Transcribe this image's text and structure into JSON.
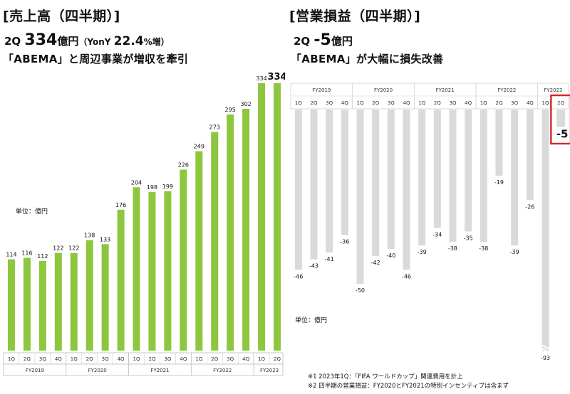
{
  "left": {
    "title": "[売上高（四半期）]",
    "headline_prefix": "2Q ",
    "headline_value": "334",
    "headline_unit": "億円",
    "headline_yoy_label": "（YonY ",
    "headline_yoy_value": "22.4",
    "headline_yoy_suffix": "%増）",
    "subhead": "「ABEMA」と周辺事業が増収を牽引",
    "unit_label": "単位：億円"
  },
  "right": {
    "title": "[営業損益（四半期）]",
    "headline_prefix": "2Q ",
    "headline_value": "-5",
    "headline_unit": "億円",
    "subhead": "「ABEMA」が大幅に損失改善",
    "unit_label": "単位：億円"
  },
  "notes": [
    "※1 2023年1Q：「FIFA ワールドカップ」関連費用を計上",
    "※2 四半期の営業損益：FY2020とFY2021の特別インセンティブは含まず"
  ],
  "colors": {
    "revenue_bar": "#8DC63F",
    "loss_bar": "#DADADA",
    "highlight_border": "#D9252B"
  },
  "chart_data": [
    {
      "type": "bar",
      "title": "売上高（四半期）",
      "unit": "億円",
      "categories": [
        "1Q",
        "2Q",
        "3Q",
        "4Q",
        "1Q",
        "2Q",
        "3Q",
        "4Q",
        "1Q",
        "2Q",
        "3Q",
        "4Q",
        "1Q",
        "2Q",
        "3Q",
        "4Q",
        "1Q",
        "2Q"
      ],
      "groups": [
        {
          "label": "FY2019",
          "count": 4
        },
        {
          "label": "FY2020",
          "count": 4
        },
        {
          "label": "FY2021",
          "count": 4
        },
        {
          "label": "FY2022",
          "count": 4
        },
        {
          "label": "FY2023",
          "count": 2
        }
      ],
      "values": [
        114,
        116,
        112,
        122,
        122,
        138,
        133,
        176,
        204,
        198,
        199,
        226,
        249,
        273,
        295,
        302,
        334,
        334
      ],
      "ylim": [
        0,
        334
      ],
      "grid": false,
      "legend": "none"
    },
    {
      "type": "bar",
      "title": "営業損益（四半期）",
      "unit": "億円",
      "categories": [
        "1Q",
        "2Q",
        "3Q",
        "4Q",
        "1Q",
        "2Q",
        "3Q",
        "4Q",
        "1Q",
        "2Q",
        "3Q",
        "4Q",
        "1Q",
        "2Q",
        "3Q",
        "4Q",
        "1Q",
        "2Q"
      ],
      "groups": [
        {
          "label": "FY2019",
          "count": 4
        },
        {
          "label": "FY2020",
          "count": 4
        },
        {
          "label": "FY2021",
          "count": 4
        },
        {
          "label": "FY2022",
          "count": 4
        },
        {
          "label": "FY2023",
          "count": 2
        }
      ],
      "values": [
        -46,
        -43,
        -41,
        -36,
        -50,
        -42,
        -40,
        -46,
        -39,
        -34,
        -38,
        -35,
        -38,
        -19,
        -39,
        -26,
        -93,
        -5
      ],
      "ylim": [
        -93,
        0
      ],
      "axis_break": true,
      "highlight_category_index": 17,
      "grid": false,
      "legend": "none"
    }
  ]
}
